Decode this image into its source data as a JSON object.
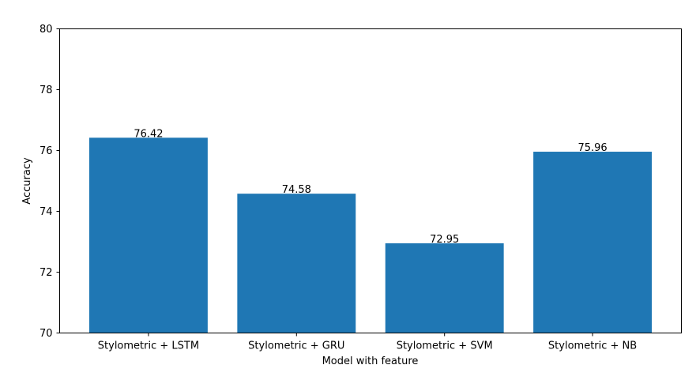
{
  "chart_data": {
    "type": "bar",
    "categories": [
      "Stylometric + LSTM",
      "Stylometric + GRU",
      "Stylometric + SVM",
      "Stylometric + NB"
    ],
    "values": [
      76.42,
      74.58,
      72.95,
      75.96
    ],
    "value_labels": [
      "76.42",
      "74.58",
      "72.95",
      "75.96"
    ],
    "xlabel": "Model with feature",
    "ylabel": "Accuracy",
    "ylim": [
      70,
      80
    ],
    "yticks": [
      "70",
      "72",
      "74",
      "76",
      "78",
      "80"
    ],
    "grid": false,
    "bar_color": "#1f77b4"
  }
}
